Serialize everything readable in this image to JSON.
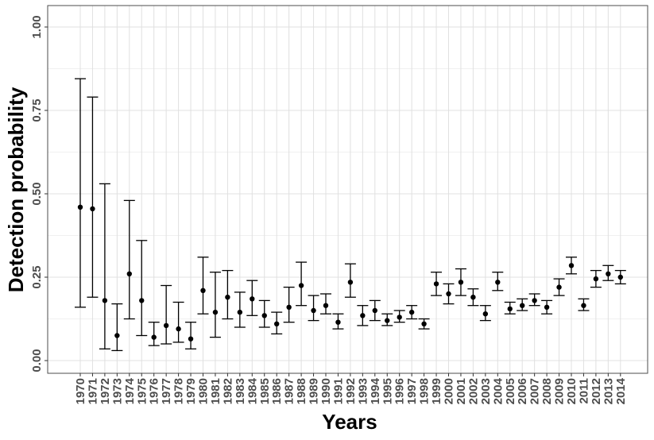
{
  "chart_data": {
    "type": "scatter",
    "error_bars": true,
    "xlabel": "Years",
    "ylabel": "Detection probability",
    "ylim": [
      0,
      1
    ],
    "yticks": [
      0,
      0.25,
      0.5,
      0.75,
      1
    ],
    "ytick_labels": [
      "0.00",
      "0.25",
      "0.50",
      "0.75",
      "1.00"
    ],
    "grid": true,
    "legend": "none",
    "colors": {
      "points": "#000000",
      "grid": "#e0e0e0",
      "border": "#4d4d4d"
    },
    "x": [
      "1970",
      "1971",
      "1972",
      "1973",
      "1974",
      "1975",
      "1976",
      "1977",
      "1978",
      "1979",
      "1980",
      "1981",
      "1982",
      "1983",
      "1984",
      "1985",
      "1986",
      "1987",
      "1988",
      "1989",
      "1990",
      "1991",
      "1992",
      "1993",
      "1994",
      "1995",
      "1996",
      "1997",
      "1998",
      "1999",
      "2000",
      "2001",
      "2002",
      "2003",
      "2004",
      "2005",
      "2006",
      "2007",
      "2008",
      "2009",
      "2010",
      "2011",
      "2012",
      "2013",
      "2014"
    ],
    "values": [
      0.46,
      0.455,
      0.18,
      0.075,
      0.26,
      0.18,
      0.07,
      0.105,
      0.095,
      0.065,
      0.21,
      0.145,
      0.19,
      0.145,
      0.185,
      0.135,
      0.11,
      0.16,
      0.225,
      0.15,
      0.165,
      0.115,
      0.235,
      0.135,
      0.15,
      0.12,
      0.13,
      0.145,
      0.11,
      0.23,
      0.2,
      0.235,
      0.19,
      0.14,
      0.235,
      0.155,
      0.165,
      0.18,
      0.16,
      0.22,
      0.285,
      0.165,
      0.245,
      0.26,
      0.25
    ],
    "lower": [
      0.16,
      0.19,
      0.035,
      0.03,
      0.125,
      0.075,
      0.045,
      0.05,
      0.055,
      0.035,
      0.14,
      0.07,
      0.125,
      0.1,
      0.135,
      0.1,
      0.08,
      0.115,
      0.165,
      0.12,
      0.14,
      0.095,
      0.19,
      0.105,
      0.12,
      0.105,
      0.115,
      0.125,
      0.095,
      0.195,
      0.17,
      0.195,
      0.165,
      0.12,
      0.21,
      0.14,
      0.15,
      0.165,
      0.14,
      0.195,
      0.26,
      0.15,
      0.22,
      0.24,
      0.23
    ],
    "upper": [
      0.845,
      0.79,
      0.53,
      0.17,
      0.48,
      0.36,
      0.115,
      0.225,
      0.175,
      0.115,
      0.31,
      0.265,
      0.27,
      0.205,
      0.24,
      0.18,
      0.145,
      0.22,
      0.295,
      0.195,
      0.2,
      0.14,
      0.29,
      0.165,
      0.18,
      0.14,
      0.15,
      0.165,
      0.125,
      0.265,
      0.23,
      0.275,
      0.215,
      0.165,
      0.265,
      0.175,
      0.185,
      0.2,
      0.18,
      0.245,
      0.31,
      0.185,
      0.27,
      0.285,
      0.27
    ]
  }
}
